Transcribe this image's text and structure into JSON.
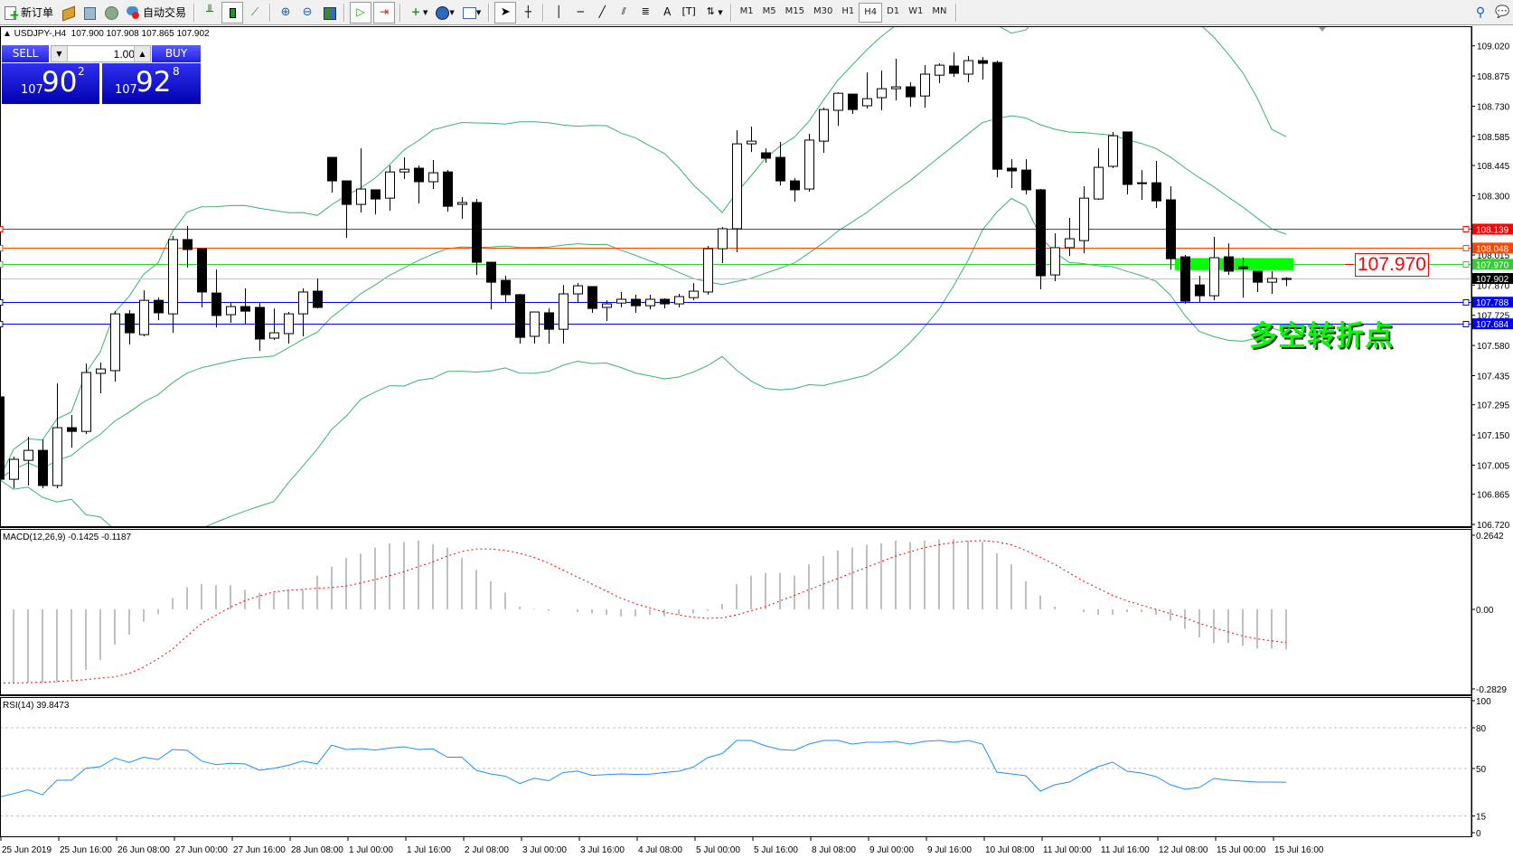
{
  "toolbar": {
    "new_order": "新订单",
    "auto_trading": "自动交易",
    "timeframes": [
      "M1",
      "M5",
      "M15",
      "M30",
      "H1",
      "H4",
      "D1",
      "W1",
      "MN"
    ],
    "active_timeframe": "H4"
  },
  "chart_header": {
    "symbol": "▲ USDJPY-,H4",
    "ohlc": "107.900 107.908 107.865 107.902"
  },
  "one_click": {
    "sell_label": "SELL",
    "buy_label": "BUY",
    "lots": "1.00",
    "sell_price": {
      "prefix": "107",
      "big": "90",
      "sup": "2"
    },
    "buy_price": {
      "prefix": "107",
      "big": "92",
      "sup": "8"
    }
  },
  "annotation": {
    "price_box": "107.970",
    "text": "多空转折点",
    "text_color": "#00ff00"
  },
  "colors": {
    "bull_body": "#ffffff",
    "bear_body": "#000000",
    "bands": "#3cb371",
    "macd_hist": "#c0c0c0",
    "macd_signal": "#ff0000",
    "rsi": "#1e90ff",
    "highlight_bar": "#00ff00"
  },
  "chart_data": {
    "type": "candlestick",
    "symbol": "USDJPY-",
    "timeframe": "H4",
    "ylim": [
      106.72,
      109.02
    ],
    "price_ticks": [
      "109.020",
      "108.875",
      "108.730",
      "108.585",
      "108.445",
      "108.300",
      "108.015",
      "107.870",
      "107.725",
      "107.580",
      "107.435",
      "107.295",
      "107.150",
      "107.005",
      "106.865",
      "106.720"
    ],
    "time_labels": [
      "25 Jun 2019",
      "25 Jun 16:00",
      "26 Jun 08:00",
      "27 Jun 00:00",
      "27 Jun 16:00",
      "28 Jun 08:00",
      "1 Jul 00:00",
      "1 Jul 16:00",
      "2 Jul 08:00",
      "3 Jul 00:00",
      "3 Jul 16:00",
      "4 Jul 08:00",
      "5 Jul 00:00",
      "5 Jul 16:00",
      "8 Jul 08:00",
      "9 Jul 00:00",
      "9 Jul 16:00",
      "10 Jul 08:00",
      "11 Jul 00:00",
      "11 Jul 16:00",
      "12 Jul 08:00",
      "15 Jul 00:00",
      "15 Jul 16:00"
    ],
    "ohlc": [
      [
        107.333,
        107.372,
        106.92,
        106.937
      ],
      [
        106.937,
        107.046,
        106.894,
        107.033
      ],
      [
        107.028,
        107.141,
        106.907,
        107.076
      ],
      [
        107.076,
        107.128,
        106.894,
        106.907
      ],
      [
        106.907,
        107.398,
        106.894,
        107.185
      ],
      [
        107.185,
        107.246,
        107.089,
        107.167
      ],
      [
        107.167,
        107.493,
        107.154,
        107.45
      ],
      [
        107.446,
        107.498,
        107.35,
        107.467
      ],
      [
        107.459,
        107.745,
        107.406,
        107.732
      ],
      [
        107.732,
        107.75,
        107.585,
        107.641
      ],
      [
        107.632,
        107.845,
        107.624,
        107.797
      ],
      [
        107.797,
        107.81,
        107.702,
        107.737
      ],
      [
        107.732,
        108.106,
        107.641,
        108.089
      ],
      [
        108.089,
        108.154,
        107.954,
        108.041
      ],
      [
        108.045,
        108.045,
        107.763,
        107.837
      ],
      [
        107.832,
        107.945,
        107.667,
        107.724
      ],
      [
        107.728,
        107.784,
        107.689,
        107.767
      ],
      [
        107.767,
        107.854,
        107.684,
        107.745
      ],
      [
        107.763,
        107.784,
        107.554,
        107.611
      ],
      [
        107.615,
        107.758,
        107.606,
        107.641
      ],
      [
        107.637,
        107.741,
        107.589,
        107.732
      ],
      [
        107.732,
        107.854,
        107.624,
        107.837
      ],
      [
        107.841,
        107.902,
        107.758,
        107.763
      ],
      [
        108.484,
        108.484,
        108.315,
        108.371
      ],
      [
        108.371,
        108.371,
        108.097,
        108.258
      ],
      [
        108.258,
        108.527,
        108.219,
        108.332
      ],
      [
        108.328,
        108.328,
        108.21,
        108.284
      ],
      [
        108.288,
        108.445,
        108.228,
        108.414
      ],
      [
        108.414,
        108.484,
        108.38,
        108.427
      ],
      [
        108.432,
        108.445,
        108.262,
        108.367
      ],
      [
        108.367,
        108.471,
        108.332,
        108.41
      ],
      [
        108.414,
        108.423,
        108.223,
        108.249
      ],
      [
        108.258,
        108.293,
        108.188,
        108.267
      ],
      [
        108.267,
        108.284,
        107.919,
        107.98
      ],
      [
        107.98,
        107.98,
        107.754,
        107.884
      ],
      [
        107.893,
        107.915,
        107.789,
        107.824
      ],
      [
        107.824,
        107.828,
        107.589,
        107.619
      ],
      [
        107.624,
        107.741,
        107.589,
        107.741
      ],
      [
        107.737,
        107.758,
        107.589,
        107.658
      ],
      [
        107.658,
        107.871,
        107.589,
        107.828
      ],
      [
        107.828,
        107.88,
        107.789,
        107.867
      ],
      [
        107.863,
        107.863,
        107.737,
        107.758
      ],
      [
        107.763,
        107.797,
        107.698,
        107.78
      ],
      [
        107.784,
        107.837,
        107.763,
        107.802
      ],
      [
        107.802,
        107.824,
        107.737,
        107.771
      ],
      [
        107.771,
        107.824,
        107.754,
        107.802
      ],
      [
        107.802,
        107.806,
        107.758,
        107.78
      ],
      [
        107.78,
        107.828,
        107.763,
        107.815
      ],
      [
        107.81,
        107.88,
        107.797,
        107.841
      ],
      [
        107.837,
        108.058,
        107.824,
        108.045
      ],
      [
        108.045,
        108.149,
        107.976,
        108.141
      ],
      [
        108.141,
        108.614,
        108.028,
        108.549
      ],
      [
        108.549,
        108.632,
        108.51,
        108.562
      ],
      [
        108.506,
        108.527,
        108.458,
        108.48
      ],
      [
        108.484,
        108.558,
        108.349,
        108.371
      ],
      [
        108.371,
        108.384,
        108.271,
        108.328
      ],
      [
        108.332,
        108.597,
        108.319,
        108.567
      ],
      [
        108.562,
        108.723,
        108.506,
        108.714
      ],
      [
        108.71,
        108.797,
        108.636,
        108.792
      ],
      [
        108.788,
        108.788,
        108.693,
        108.714
      ],
      [
        108.732,
        108.892,
        108.719,
        108.766
      ],
      [
        108.771,
        108.901,
        108.71,
        108.814
      ],
      [
        108.814,
        108.958,
        108.758,
        108.823
      ],
      [
        108.823,
        108.845,
        108.727,
        108.775
      ],
      [
        108.779,
        108.927,
        108.723,
        108.884
      ],
      [
        108.879,
        108.936,
        108.84,
        108.927
      ],
      [
        108.923,
        108.988,
        108.871,
        108.888
      ],
      [
        108.884,
        108.971,
        108.845,
        108.949
      ],
      [
        108.949,
        108.966,
        108.858,
        108.936
      ],
      [
        108.94,
        108.949,
        108.388,
        108.427
      ],
      [
        108.432,
        108.475,
        108.336,
        108.419
      ],
      [
        108.423,
        108.475,
        108.306,
        108.328
      ],
      [
        108.328,
        108.332,
        107.85,
        107.915
      ],
      [
        107.919,
        108.119,
        107.889,
        108.05
      ],
      [
        108.05,
        108.193,
        108.01,
        108.093
      ],
      [
        108.084,
        108.345,
        108.023,
        108.288
      ],
      [
        108.284,
        108.527,
        108.28,
        108.436
      ],
      [
        108.441,
        108.606,
        108.432,
        108.588
      ],
      [
        108.606,
        108.606,
        108.306,
        108.354
      ],
      [
        108.362,
        108.423,
        108.28,
        108.358
      ],
      [
        108.362,
        108.467,
        108.241,
        108.275
      ],
      [
        108.28,
        108.345,
        107.945,
        107.997
      ],
      [
        108.006,
        108.015,
        107.78,
        107.793
      ],
      [
        107.871,
        107.915,
        107.789,
        107.819
      ],
      [
        107.819,
        108.102,
        107.797,
        108.002
      ],
      [
        108.006,
        108.071,
        107.919,
        107.937
      ],
      [
        107.958,
        108.002,
        107.81,
        107.95
      ],
      [
        107.937,
        107.937,
        107.837,
        107.884
      ],
      [
        107.884,
        107.937,
        107.828,
        107.902
      ],
      [
        107.9,
        107.908,
        107.865,
        107.902
      ]
    ],
    "bollinger": {
      "period": 20,
      "deviation": 2
    },
    "hlines": [
      {
        "price": "108.139",
        "color": "#ff0000"
      },
      {
        "price": "108.048",
        "color": "#ff4500"
      },
      {
        "price": "107.970",
        "color": "#32cd32"
      },
      {
        "price": "107.788",
        "color": "#0000ff"
      },
      {
        "price": "107.684",
        "color": "#0000ff"
      }
    ],
    "bid": {
      "price": "107.902",
      "color": "#c0c0c0",
      "label_bg": "#000000"
    },
    "highlight_zone": {
      "from_bar": 82,
      "to_bar": 89,
      "low": 107.942,
      "high": 108.0
    },
    "macd": {
      "label": "MACD(12,26,9) -0.1425 -0.1187",
      "ylim": [
        -0.2829,
        0.2642
      ],
      "ticks": [
        "0.2642",
        "0.00",
        "-0.2829"
      ],
      "main": [
        -0.26,
        -0.26,
        -0.26,
        -0.26,
        -0.26,
        -0.25,
        -0.216,
        -0.18,
        -0.126,
        -0.09,
        -0.044,
        -0.017,
        0.041,
        0.079,
        0.09,
        0.086,
        0.086,
        0.07,
        0.059,
        0.059,
        0.07,
        0.07,
        0.12,
        0.152,
        0.183,
        0.198,
        0.22,
        0.235,
        0.24,
        0.245,
        0.232,
        0.22,
        0.183,
        0.14,
        0.1,
        0.06,
        0.01,
        0.002,
        -0.005,
        0.0,
        -0.01,
        -0.015,
        -0.02,
        -0.025,
        -0.025,
        -0.02,
        -0.025,
        -0.02,
        -0.015,
        -0.005,
        0.02,
        0.09,
        0.12,
        0.13,
        0.13,
        0.12,
        0.16,
        0.19,
        0.21,
        0.22,
        0.23,
        0.235,
        0.245,
        0.24,
        0.245,
        0.25,
        0.25,
        0.245,
        0.24,
        0.2,
        0.16,
        0.1,
        0.05,
        0.01,
        0.0,
        -0.01,
        -0.02,
        -0.02,
        -0.01,
        -0.01,
        -0.02,
        -0.04,
        -0.07,
        -0.1,
        -0.12,
        -0.12,
        -0.13,
        -0.14,
        -0.14,
        -0.1425
      ],
      "signal": [
        -0.262,
        -0.262,
        -0.261,
        -0.259,
        -0.257,
        -0.254,
        -0.25,
        -0.245,
        -0.24,
        -0.228,
        -0.205,
        -0.176,
        -0.141,
        -0.095,
        -0.05,
        -0.021,
        0.008,
        0.031,
        0.048,
        0.062,
        0.068,
        0.071,
        0.075,
        0.078,
        0.083,
        0.094,
        0.106,
        0.12,
        0.134,
        0.152,
        0.169,
        0.19,
        0.206,
        0.215,
        0.215,
        0.21,
        0.2,
        0.185,
        0.165,
        0.14,
        0.115,
        0.09,
        0.065,
        0.04,
        0.02,
        0.005,
        -0.01,
        -0.02,
        -0.028,
        -0.032,
        -0.03,
        -0.02,
        -0.005,
        0.01,
        0.03,
        0.05,
        0.07,
        0.09,
        0.11,
        0.13,
        0.15,
        0.17,
        0.19,
        0.205,
        0.22,
        0.23,
        0.238,
        0.243,
        0.245,
        0.24,
        0.23,
        0.21,
        0.185,
        0.16,
        0.13,
        0.1,
        0.075,
        0.05,
        0.03,
        0.015,
        0.0,
        -0.015,
        -0.03,
        -0.05,
        -0.065,
        -0.08,
        -0.095,
        -0.105,
        -0.112,
        -0.1187
      ]
    },
    "rsi": {
      "label": "RSI(14) 39.8473",
      "ylim": [
        0,
        100
      ],
      "ticks": [
        "100",
        "80",
        "50",
        "15",
        "0"
      ],
      "levels": [
        80,
        50,
        15
      ],
      "values": [
        28.9,
        31.5,
        34.3,
        30.6,
        41.3,
        41.3,
        50.2,
        51.3,
        57.7,
        54.5,
        58.3,
        56.6,
        64,
        63.4,
        55.5,
        52.8,
        53.8,
        53.4,
        48.7,
        50.2,
        52.3,
        55.5,
        53.4,
        67.2,
        64,
        64.7,
        63.6,
        65.1,
        66,
        64,
        64.5,
        58.3,
        58.3,
        48.7,
        46,
        44.3,
        38.9,
        42.8,
        41,
        47,
        48.1,
        44.9,
        45.5,
        46,
        45.7,
        45.8,
        47,
        48,
        51,
        58,
        61,
        70.7,
        70.7,
        66.7,
        64,
        63.3,
        68,
        70.7,
        70.7,
        68,
        69.3,
        69.3,
        70,
        68,
        70,
        70.7,
        69.3,
        70.7,
        68,
        47.3,
        46,
        44.7,
        33.3,
        38,
        40,
        46,
        51.3,
        54.7,
        48,
        46.7,
        44,
        38,
        34.7,
        36,
        42.7,
        41.3,
        40.7,
        40,
        40,
        39.8473
      ]
    }
  }
}
